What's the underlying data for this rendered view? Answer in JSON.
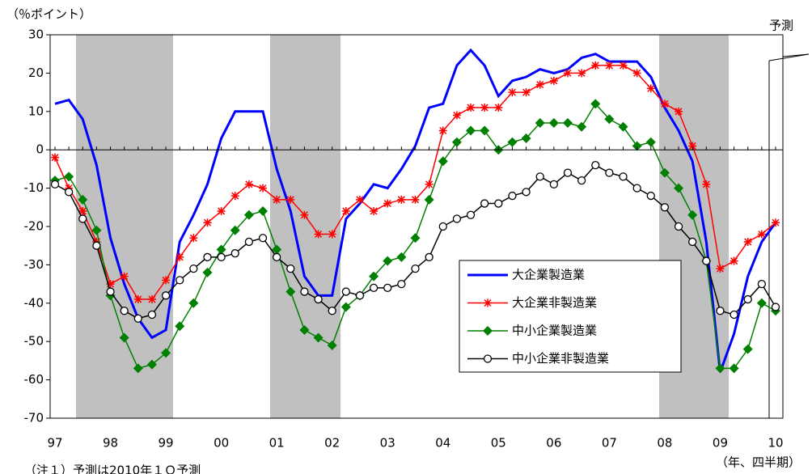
{
  "chart_data": {
    "type": "line",
    "y_axis_label": "（％ポイント）",
    "x_axis_label": "（年、四半期）",
    "note": "（注１）予測は2010年１Ｑ予測",
    "forecast_label": "予測",
    "categories": [
      "97",
      null,
      null,
      null,
      "98",
      null,
      null,
      null,
      "99",
      null,
      null,
      null,
      "00",
      null,
      null,
      null,
      "01",
      null,
      null,
      null,
      "02",
      null,
      null,
      null,
      "03",
      null,
      null,
      null,
      "04",
      null,
      null,
      null,
      "05",
      null,
      null,
      null,
      "06",
      null,
      null,
      null,
      "07",
      null,
      null,
      null,
      "08",
      null,
      null,
      null,
      "09",
      null,
      null,
      null,
      "10"
    ],
    "ylim": [
      -70,
      30
    ],
    "yticks": [
      30,
      20,
      10,
      0,
      -10,
      -20,
      -30,
      -40,
      -50,
      -60,
      -70
    ],
    "series": [
      {
        "name": "大企業製造業",
        "color": "#0000ff",
        "marker": "none",
        "values": [
          12,
          13,
          8,
          -4,
          -23,
          -35,
          -44,
          -49,
          -47,
          -24,
          -17,
          -9,
          3,
          10,
          10,
          10,
          -5,
          -16,
          -33,
          -38,
          -38,
          -18,
          -14,
          -9,
          -10,
          -5,
          1,
          11,
          12,
          22,
          26,
          22,
          14,
          18,
          19,
          21,
          20,
          21,
          24,
          25,
          23,
          23,
          23,
          19,
          11,
          5,
          -3,
          -24,
          -58,
          -48,
          -33,
          -24,
          -19
        ]
      },
      {
        "name": "大企業非製造業",
        "color": "#ff0000",
        "marker": "asterisk",
        "values": [
          -2,
          -10,
          -16,
          -24,
          -35,
          -33,
          -39,
          -39,
          -34,
          -28,
          -23,
          -19,
          -16,
          -12,
          -9,
          -10,
          -13,
          -13,
          -17,
          -22,
          -22,
          -16,
          -13,
          -16,
          -14,
          -13,
          -13,
          -9,
          5,
          9,
          11,
          11,
          11,
          15,
          15,
          17,
          18,
          20,
          20,
          22,
          22,
          22,
          20,
          16,
          12,
          10,
          1,
          -9,
          -31,
          -29,
          -24,
          -22,
          -19
        ]
      },
      {
        "name": "中小企業製造業",
        "color": "#008000",
        "marker": "diamond",
        "values": [
          -8,
          -7,
          -13,
          -21,
          -38,
          -49,
          -57,
          -56,
          -53,
          -46,
          -40,
          -32,
          -26,
          -21,
          -17,
          -16,
          -26,
          -37,
          -47,
          -49,
          -51,
          -41,
          -38,
          -33,
          -29,
          -28,
          -23,
          -13,
          -3,
          2,
          5,
          5,
          0,
          2,
          3,
          7,
          7,
          7,
          6,
          12,
          8,
          6,
          1,
          2,
          -6,
          -10,
          -17,
          -29,
          -57,
          -57,
          -52,
          -40,
          -42
        ]
      },
      {
        "name": "中小企業非製造業",
        "color": "#000000",
        "marker": "circle",
        "values": [
          -9,
          -11,
          -18,
          -25,
          -37,
          -42,
          -44,
          -43,
          -38,
          -34,
          -31,
          -28,
          -28,
          -27,
          -24,
          -23,
          -28,
          -31,
          -37,
          -39,
          -42,
          -37,
          -38,
          -36,
          -36,
          -35,
          -31,
          -28,
          -20,
          -18,
          -17,
          -14,
          -14,
          -12,
          -11,
          -7,
          -9,
          -6,
          -8,
          -4,
          -6,
          -7,
          -10,
          -12,
          -15,
          -20,
          -24,
          -29,
          -42,
          -43,
          -39,
          -35,
          -41
        ]
      }
    ]
  }
}
